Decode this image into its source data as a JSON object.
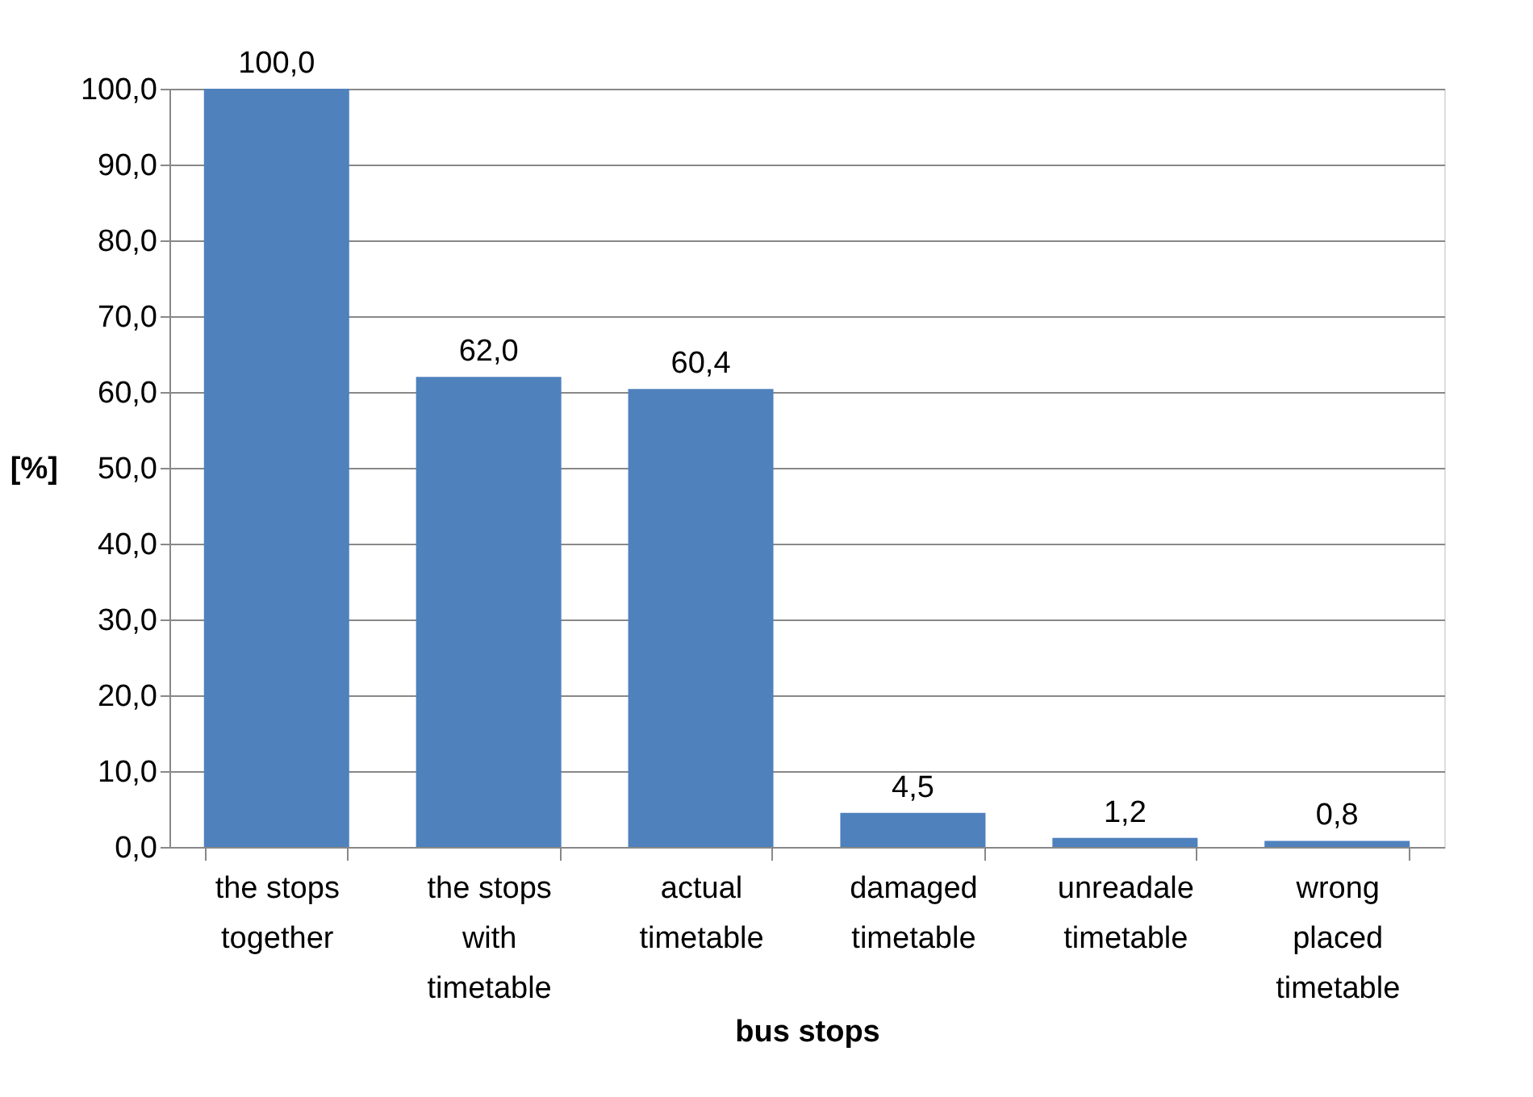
{
  "chart_data": {
    "type": "bar",
    "categories": [
      "the stops together",
      "the stops with timetable",
      "actual timetable",
      "damaged timetable",
      "unreadale timetable",
      "wrong placed timetable"
    ],
    "values": [
      100.0,
      62.0,
      60.4,
      4.5,
      1.2,
      0.8
    ],
    "value_labels": [
      "100,0",
      "62,0",
      "60,4",
      "4,5",
      "1,2",
      "0,8"
    ],
    "color": "#4f81bd",
    "xlabel": "bus stops",
    "ylabel": "[%]",
    "ylim": [
      0,
      100
    ],
    "yticks": [
      {
        "value": 0,
        "label": "0,0"
      },
      {
        "value": 10,
        "label": "10,0"
      },
      {
        "value": 20,
        "label": "20,0"
      },
      {
        "value": 30,
        "label": "30,0"
      },
      {
        "value": 40,
        "label": "40,0"
      },
      {
        "value": 50,
        "label": "50,0"
      },
      {
        "value": 60,
        "label": "60,0"
      },
      {
        "value": 70,
        "label": "70,0"
      },
      {
        "value": 80,
        "label": "80,0"
      },
      {
        "value": 90,
        "label": "90,0"
      },
      {
        "value": 100,
        "label": "100,0"
      }
    ],
    "grid": "y"
  }
}
